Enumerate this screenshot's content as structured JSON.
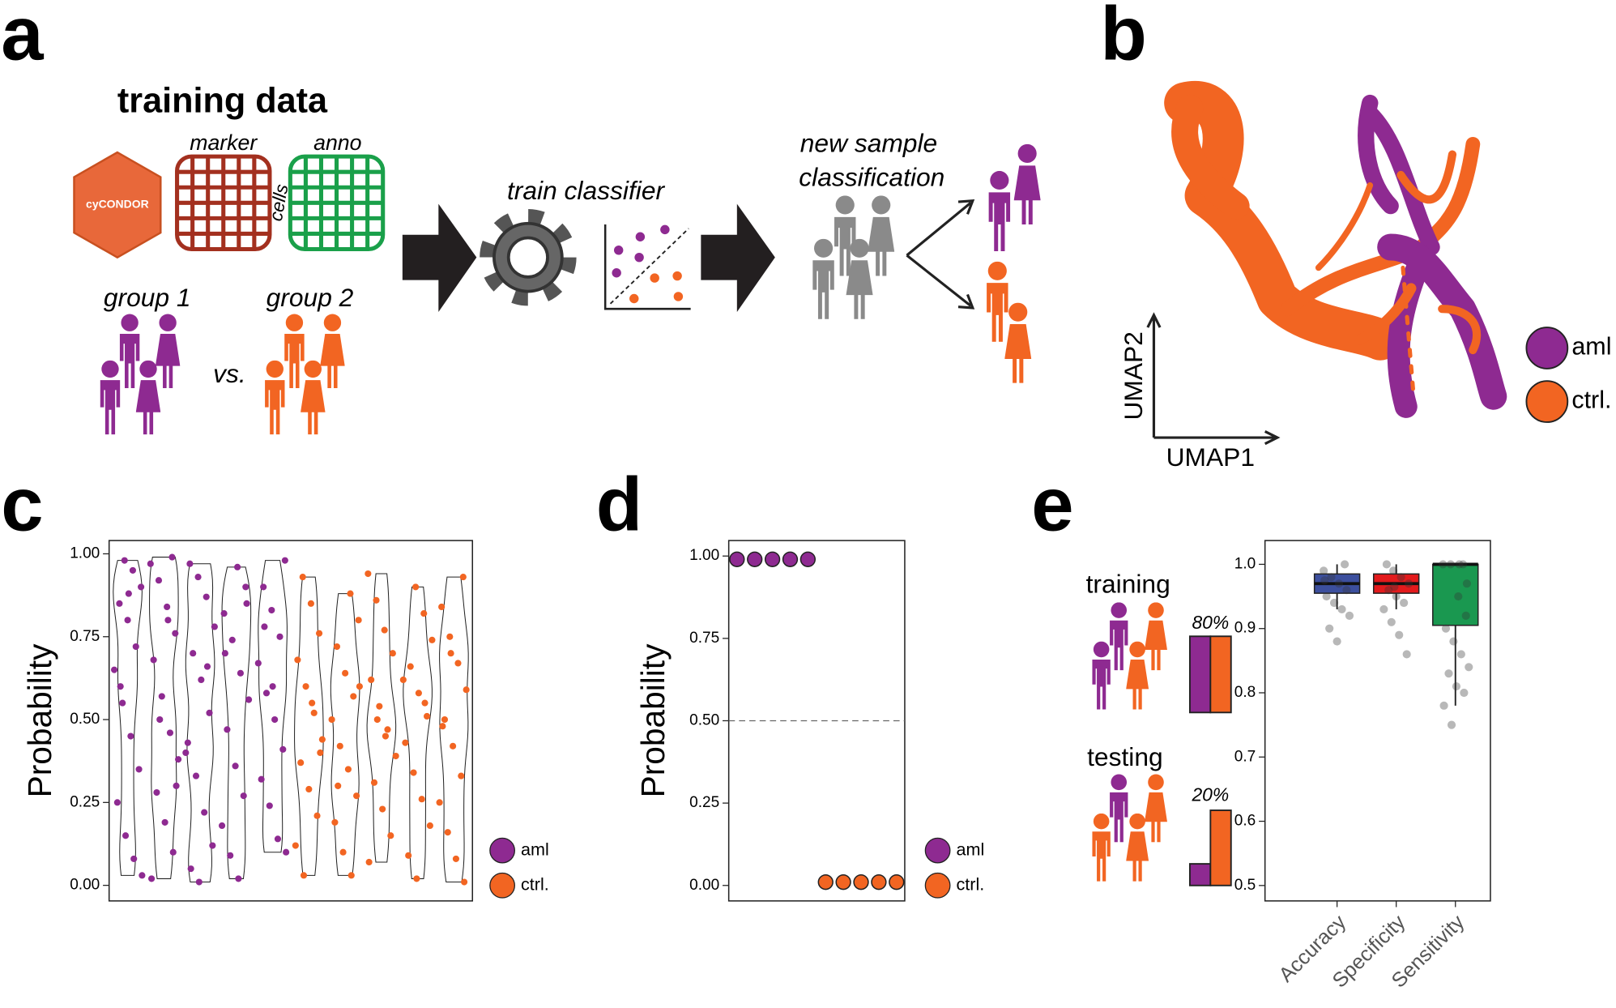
{
  "panel_labels": [
    "a",
    "b",
    "c",
    "d",
    "e"
  ],
  "diagram": {
    "title": "training data",
    "logo": "cyCONDOR",
    "marker": "marker",
    "anno": "anno",
    "cells": "cells",
    "group1": "group 1",
    "group2": "group 2",
    "vs": "vs.",
    "train": "train classifier",
    "new_sample": [
      "new sample",
      "classification"
    ]
  },
  "umap": {
    "x_label": "UMAP1",
    "y_label": "UMAP2",
    "legend": [
      {
        "name": "aml",
        "color": "#8e2a91"
      },
      {
        "name": "ctrl.",
        "color": "#f26522"
      }
    ]
  },
  "split": {
    "training": "training",
    "testing": "testing",
    "train_pct": "80%",
    "test_pct": "20%"
  },
  "chart_data": [
    {
      "type": "violin",
      "y_label": "Probability",
      "ylim": [
        -0.047,
        1.04
      ],
      "yticks": [
        {
          "value": 0,
          "label": "0.00"
        },
        {
          "value": 0.25,
          "label": "0.25"
        },
        {
          "value": 0.5,
          "label": "0.50"
        },
        {
          "value": 0.75,
          "label": "0.75"
        },
        {
          "value": 1,
          "label": "1.00"
        }
      ],
      "series": [
        {
          "name": "aml",
          "color": "#8e2a91",
          "samples": [
            [
              0.98,
              0.95,
              0.9,
              0.85,
              0.8,
              0.72,
              0.65,
              0.55,
              0.45,
              0.35,
              0.25,
              0.15,
              0.08,
              0.03,
              0.6,
              0.88
            ],
            [
              0.99,
              0.97,
              0.92,
              0.84,
              0.76,
              0.68,
              0.57,
              0.46,
              0.38,
              0.28,
              0.19,
              0.1,
              0.02,
              0.5,
              0.8,
              0.3
            ],
            [
              0.97,
              0.93,
              0.87,
              0.78,
              0.7,
              0.62,
              0.52,
              0.43,
              0.33,
              0.22,
              0.12,
              0.05,
              0.01,
              0.66,
              0.4
            ],
            [
              0.96,
              0.9,
              0.82,
              0.74,
              0.64,
              0.56,
              0.47,
              0.36,
              0.27,
              0.18,
              0.09,
              0.02,
              0.85,
              0.7
            ],
            [
              0.98,
              0.9,
              0.83,
              0.75,
              0.67,
              0.58,
              0.5,
              0.41,
              0.32,
              0.24,
              0.14,
              0.1,
              0.78,
              0.6
            ]
          ]
        },
        {
          "name": "ctrl.",
          "color": "#f26522",
          "samples": [
            [
              0.93,
              0.85,
              0.76,
              0.68,
              0.6,
              0.52,
              0.44,
              0.37,
              0.29,
              0.21,
              0.12,
              0.03,
              0.55,
              0.4
            ],
            [
              0.88,
              0.8,
              0.72,
              0.64,
              0.57,
              0.5,
              0.42,
              0.35,
              0.27,
              0.19,
              0.1,
              0.03,
              0.6,
              0.3
            ],
            [
              0.94,
              0.86,
              0.77,
              0.7,
              0.62,
              0.54,
              0.47,
              0.39,
              0.31,
              0.23,
              0.15,
              0.07,
              0.5,
              0.45
            ],
            [
              0.9,
              0.82,
              0.74,
              0.66,
              0.58,
              0.51,
              0.43,
              0.34,
              0.26,
              0.18,
              0.09,
              0.02,
              0.55,
              0.62
            ],
            [
              0.93,
              0.84,
              0.75,
              0.67,
              0.59,
              0.5,
              0.42,
              0.33,
              0.25,
              0.16,
              0.08,
              0.01,
              0.48,
              0.7
            ]
          ]
        }
      ]
    },
    {
      "type": "dot",
      "y_label": "Probability",
      "ylim": [
        -0.047,
        1.047
      ],
      "hline": 0.5,
      "yticks": [
        {
          "value": 0,
          "label": "0.00"
        },
        {
          "value": 0.25,
          "label": "0.25"
        },
        {
          "value": 0.5,
          "label": "0.50"
        },
        {
          "value": 0.75,
          "label": "0.75"
        },
        {
          "value": 1,
          "label": "1.00"
        }
      ],
      "series": [
        {
          "name": "aml",
          "color": "#8e2a91",
          "values": [
            0.99,
            0.99,
            0.99,
            0.99,
            0.99
          ]
        },
        {
          "name": "ctrl.",
          "color": "#f26522",
          "values": [
            0.01,
            0.01,
            0.01,
            0.01,
            0.01
          ]
        }
      ]
    },
    {
      "type": "box",
      "categories": [
        "Accuracy",
        "Specificity",
        "Sensitivity"
      ],
      "ylim": [
        0.476,
        1.037
      ],
      "yticks": [
        0.5,
        0.6,
        0.7,
        0.8,
        0.9,
        {
          "value": 1,
          "label": "1.0"
        }
      ],
      "colors": [
        "#3c4f9e",
        "#e31a1c",
        "#1a9850"
      ],
      "boxes": [
        {
          "low": 0.93,
          "q1": 0.955,
          "median": 0.97,
          "q3": 0.985,
          "high": 1.0,
          "points": [
            0.99,
            0.98,
            0.97,
            0.96,
            0.95,
            0.94,
            0.93,
            0.92,
            0.9,
            0.88,
            1.0,
            0.975
          ]
        },
        {
          "low": 0.93,
          "q1": 0.955,
          "median": 0.97,
          "q3": 0.985,
          "high": 1.0,
          "points": [
            0.99,
            0.98,
            0.97,
            0.96,
            0.95,
            0.94,
            0.93,
            0.91,
            0.89,
            0.86,
            1.0,
            0.965
          ]
        },
        {
          "low": 0.78,
          "q1": 0.905,
          "median": 1.0,
          "q3": 1.0,
          "high": 1.0,
          "points": [
            1.0,
            1.0,
            1.0,
            0.95,
            0.92,
            0.9,
            0.88,
            0.86,
            0.84,
            0.83,
            0.81,
            0.8,
            0.78,
            0.75,
            1.0,
            0.97
          ]
        }
      ]
    }
  ]
}
